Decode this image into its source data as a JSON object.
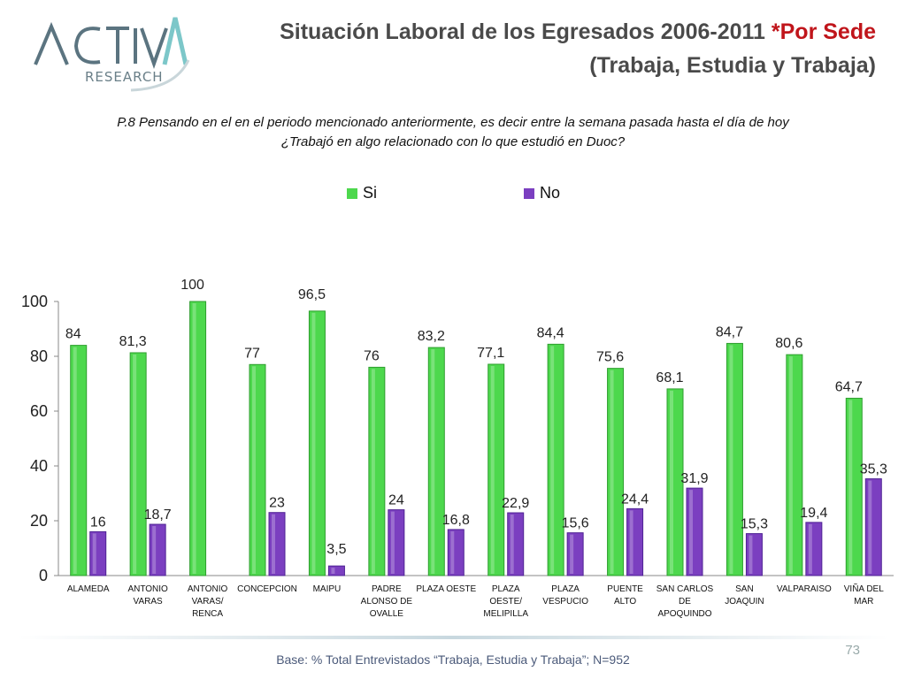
{
  "header": {
    "logo_brand": "ACTIVA",
    "logo_sub": "RESEARCH",
    "title_line1": "Situación Laboral de los Egresados 2006-2011",
    "title_accent": "*Por Sede",
    "title_line2": "(Trabaja, Estudia y Trabaja)"
  },
  "question": {
    "line1": "P.8 Pensando en el en el periodo mencionado anteriormente, es decir entre la semana pasada hasta el día de hoy",
    "line2": "¿Trabajó en algo relacionado con lo que estudió en Duoc?"
  },
  "colors": {
    "si": "#4dd84d",
    "no": "#7b3fc0",
    "accent": "#c0151b",
    "logo": "#5b7480"
  },
  "chart_data": {
    "type": "bar",
    "categories": [
      [
        "ALAMEDA"
      ],
      [
        "ANTONIO",
        "VARAS"
      ],
      [
        "ANTONIO",
        "VARAS/",
        "RENCA"
      ],
      [
        "CONCEPCION"
      ],
      [
        "MAIPU"
      ],
      [
        "PADRE",
        "ALONSO DE",
        "OVALLE"
      ],
      [
        "PLAZA OESTE"
      ],
      [
        "PLAZA",
        "OESTE/",
        "MELIPILLA"
      ],
      [
        "PLAZA",
        "VESPUCIO"
      ],
      [
        "PUENTE",
        "ALTO"
      ],
      [
        "SAN CARLOS",
        "DE",
        "APOQUINDO"
      ],
      [
        "SAN",
        "JOAQUIN"
      ],
      [
        "VALPARAISO"
      ],
      [
        "VIÑA DEL",
        "MAR"
      ]
    ],
    "series": [
      {
        "name": "Si",
        "values": [
          84,
          81.3,
          100,
          77,
          96.5,
          76,
          83.2,
          77.1,
          84.4,
          75.6,
          68.1,
          84.7,
          80.6,
          64.7
        ],
        "labels": [
          "84",
          "81,3",
          "100",
          "77",
          "96,5",
          "76",
          "83,2",
          "77,1",
          "84,4",
          "75,6",
          "68,1",
          "84,7",
          "80,6",
          "64,7"
        ]
      },
      {
        "name": "No",
        "values": [
          16,
          18.7,
          null,
          23,
          3.5,
          24,
          16.8,
          22.9,
          15.6,
          24.4,
          31.9,
          15.3,
          19.4,
          35.3
        ],
        "labels": [
          "16",
          "18,7",
          "",
          "23",
          "3,5",
          "24",
          "16,8",
          "22,9",
          "15,6",
          "24,4",
          "31,9",
          "15,3",
          "19,4",
          "35,3"
        ]
      }
    ],
    "yticks": [
      "0",
      "20",
      "40",
      "60",
      "80",
      "100"
    ],
    "ylim": [
      0,
      100
    ],
    "legend": [
      "Si",
      "No"
    ],
    "legend_position": "top-center",
    "grid": false
  },
  "footer": {
    "note": "Base: % Total Entrevistados “Trabaja, Estudia y Trabaja”; N=952",
    "page": "73"
  }
}
